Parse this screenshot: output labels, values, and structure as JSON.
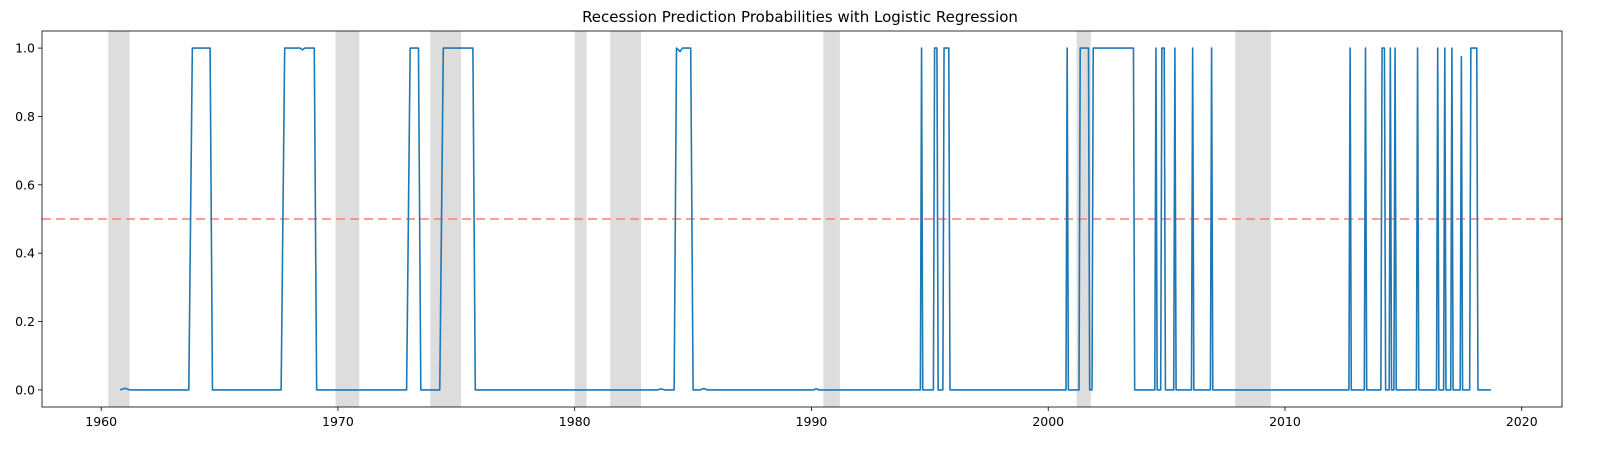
{
  "chart_data": {
    "type": "line",
    "title": "Recession Prediction Probabilities with Logistic Regression",
    "xlabel": "",
    "ylabel": "",
    "xlim": [
      1957.5,
      2021.7
    ],
    "ylim": [
      -0.05,
      1.05
    ],
    "x_ticks": [
      1960,
      1970,
      1980,
      1990,
      2000,
      2010,
      2020
    ],
    "y_ticks": [
      0.0,
      0.2,
      0.4,
      0.6,
      0.8,
      1.0
    ],
    "y_tick_labels": [
      "0.0",
      "0.2",
      "0.4",
      "0.6",
      "0.8",
      "1.0"
    ],
    "threshold": 0.5,
    "grid": false,
    "colors": {
      "series": "#1f77b4",
      "threshold": "#fa8072",
      "recession_band": "#dddddd"
    },
    "recession_periods": [
      [
        1960.3,
        1961.2
      ],
      [
        1969.9,
        1970.9
      ],
      [
        1973.9,
        1975.2
      ],
      [
        1980.0,
        1980.5
      ],
      [
        1981.5,
        1982.8
      ],
      [
        1990.5,
        1991.2
      ],
      [
        2001.2,
        2001.8
      ],
      [
        2007.9,
        2009.4
      ]
    ],
    "series": [
      {
        "points": [
          [
            1960.8,
            0.0
          ],
          [
            1961.0,
            0.005
          ],
          [
            1961.2,
            0.0
          ],
          [
            1963.7,
            0.0
          ],
          [
            1963.85,
            1.0
          ],
          [
            1964.6,
            1.0
          ],
          [
            1964.7,
            0.0
          ],
          [
            1967.6,
            0.0
          ],
          [
            1967.75,
            1.0
          ],
          [
            1968.4,
            1.0
          ],
          [
            1968.5,
            0.995
          ],
          [
            1968.6,
            1.0
          ],
          [
            1969.0,
            1.0
          ],
          [
            1969.1,
            0.0
          ],
          [
            1972.9,
            0.0
          ],
          [
            1973.05,
            1.0
          ],
          [
            1973.4,
            1.0
          ],
          [
            1973.5,
            0.0
          ],
          [
            1974.3,
            0.0
          ],
          [
            1974.45,
            1.0
          ],
          [
            1975.7,
            1.0
          ],
          [
            1975.8,
            0.0
          ],
          [
            1983.5,
            0.0
          ],
          [
            1983.65,
            0.003
          ],
          [
            1983.8,
            0.0
          ],
          [
            1984.2,
            0.0
          ],
          [
            1984.3,
            1.0
          ],
          [
            1984.45,
            0.99
          ],
          [
            1984.55,
            1.0
          ],
          [
            1984.9,
            1.0
          ],
          [
            1985.0,
            0.0
          ],
          [
            1985.3,
            0.0
          ],
          [
            1985.45,
            0.004
          ],
          [
            1985.6,
            0.0
          ],
          [
            1990.1,
            0.0
          ],
          [
            1990.2,
            0.004
          ],
          [
            1990.3,
            0.0
          ],
          [
            1994.6,
            0.0
          ],
          [
            1994.65,
            1.0
          ],
          [
            1994.7,
            0.0
          ],
          [
            1995.15,
            0.0
          ],
          [
            1995.2,
            1.0
          ],
          [
            1995.3,
            1.0
          ],
          [
            1995.35,
            0.0
          ],
          [
            1995.55,
            0.0
          ],
          [
            1995.6,
            1.0
          ],
          [
            1995.8,
            1.0
          ],
          [
            1995.85,
            0.0
          ],
          [
            2000.75,
            0.0
          ],
          [
            2000.8,
            1.0
          ],
          [
            2000.85,
            0.0
          ],
          [
            2001.3,
            0.0
          ],
          [
            2001.35,
            1.0
          ],
          [
            2001.7,
            1.0
          ],
          [
            2001.75,
            0.0
          ],
          [
            2001.85,
            0.0
          ],
          [
            2001.9,
            1.0
          ],
          [
            2003.6,
            1.0
          ],
          [
            2003.65,
            0.0
          ],
          [
            2004.5,
            0.0
          ],
          [
            2004.55,
            1.0
          ],
          [
            2004.6,
            0.0
          ],
          [
            2004.75,
            0.0
          ],
          [
            2004.8,
            1.0
          ],
          [
            2004.9,
            1.0
          ],
          [
            2004.95,
            0.0
          ],
          [
            2005.3,
            0.0
          ],
          [
            2005.35,
            1.0
          ],
          [
            2005.4,
            0.0
          ],
          [
            2006.05,
            0.0
          ],
          [
            2006.1,
            1.0
          ],
          [
            2006.15,
            0.0
          ],
          [
            2006.85,
            0.0
          ],
          [
            2006.9,
            1.0
          ],
          [
            2006.95,
            0.0
          ],
          [
            2012.7,
            0.0
          ],
          [
            2012.75,
            1.0
          ],
          [
            2012.8,
            0.0
          ],
          [
            2013.35,
            0.0
          ],
          [
            2013.4,
            1.0
          ],
          [
            2013.45,
            0.0
          ],
          [
            2014.05,
            0.0
          ],
          [
            2014.1,
            1.0
          ],
          [
            2014.2,
            1.0
          ],
          [
            2014.25,
            0.0
          ],
          [
            2014.4,
            0.0
          ],
          [
            2014.45,
            1.0
          ],
          [
            2014.5,
            0.0
          ],
          [
            2014.6,
            0.0
          ],
          [
            2014.65,
            1.0
          ],
          [
            2014.7,
            0.0
          ],
          [
            2015.55,
            0.0
          ],
          [
            2015.6,
            1.0
          ],
          [
            2015.65,
            0.0
          ],
          [
            2016.4,
            0.0
          ],
          [
            2016.45,
            1.0
          ],
          [
            2016.5,
            0.0
          ],
          [
            2016.7,
            0.0
          ],
          [
            2016.75,
            1.0
          ],
          [
            2016.8,
            0.0
          ],
          [
            2017.0,
            0.0
          ],
          [
            2017.05,
            1.0
          ],
          [
            2017.1,
            0.0
          ],
          [
            2017.4,
            0.0
          ],
          [
            2017.45,
            0.975
          ],
          [
            2017.5,
            0.0
          ],
          [
            2017.8,
            0.0
          ],
          [
            2017.85,
            1.0
          ],
          [
            2018.1,
            1.0
          ],
          [
            2018.15,
            0.0
          ],
          [
            2018.7,
            0.0
          ]
        ]
      }
    ]
  }
}
